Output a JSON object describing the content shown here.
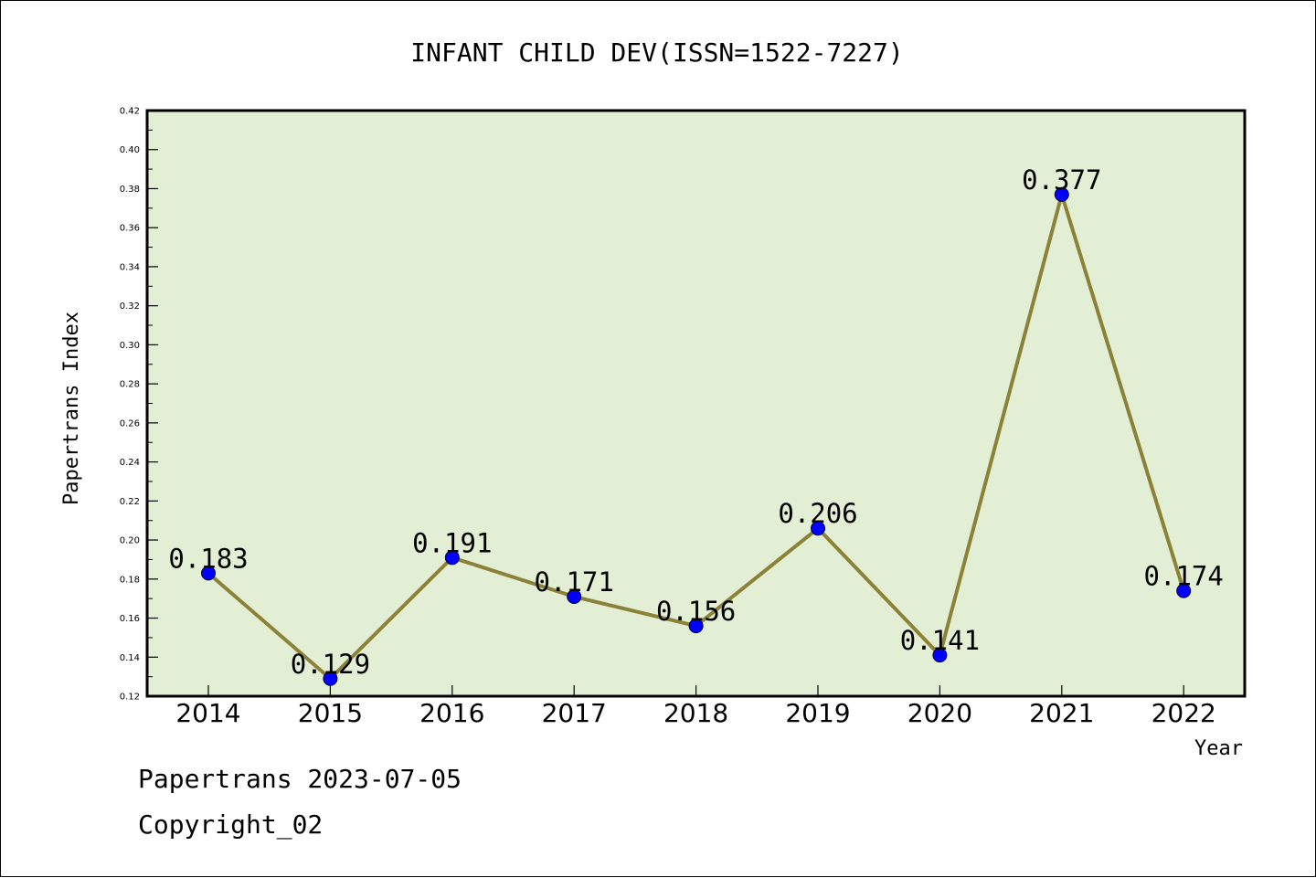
{
  "footer": {
    "line1": "Papertrans 2023-07-05",
    "line2": "Copyright_02"
  },
  "chart_data": {
    "type": "line",
    "title": "INFANT CHILD DEV(ISSN=1522-7227)",
    "xlabel": "Year",
    "ylabel": "Papertrans Index",
    "categories": [
      "2014",
      "2015",
      "2016",
      "2017",
      "2018",
      "2019",
      "2020",
      "2021",
      "2022"
    ],
    "series": [
      {
        "values": [
          0.183,
          0.129,
          0.191,
          0.171,
          0.156,
          0.206,
          0.141,
          0.377,
          0.174
        ],
        "labels": [
          "0.183",
          "0.129",
          "0.191",
          "0.171",
          "0.156",
          "0.206",
          "0.141",
          "0.377",
          "0.174"
        ],
        "line_color": "#8b8237",
        "marker_color": "#0000ff"
      }
    ],
    "ylim": [
      0.12,
      0.42
    ],
    "yticks": [
      "0.12",
      "0.14",
      "0.16",
      "0.18",
      "0.20",
      "0.22",
      "0.24",
      "0.26",
      "0.28",
      "0.30",
      "0.32",
      "0.34",
      "0.36",
      "0.38",
      "0.40",
      "0.42"
    ],
    "plot_background": "#e2efd5",
    "grid": false,
    "legend": "none"
  }
}
